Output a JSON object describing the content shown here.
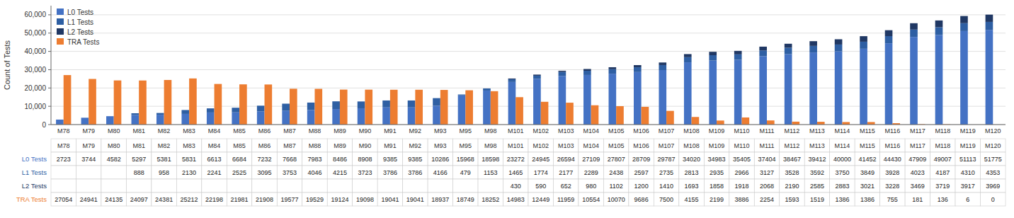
{
  "chart_data": {
    "type": "bar",
    "categories": [
      "M78",
      "M79",
      "M80",
      "M81",
      "M82",
      "M83",
      "M84",
      "M85",
      "M86",
      "M87",
      "M88",
      "M89",
      "M90",
      "M91",
      "M92",
      "M93",
      "M95",
      "M98",
      "M101",
      "M102",
      "M103",
      "M104",
      "M105",
      "M106",
      "M107",
      "M108",
      "M109",
      "M110",
      "M111",
      "M112",
      "M113",
      "M114",
      "M115",
      "M116",
      "M117",
      "M118",
      "M119",
      "M120"
    ],
    "series": [
      {
        "name": "L0 Tests",
        "color": "#4472c4",
        "stacked": true,
        "values": [
          2723,
          3744,
          4582,
          5297,
          5381,
          5831,
          6613,
          6684,
          7232,
          7668,
          7983,
          8486,
          8908,
          9385,
          9385,
          10286,
          15968,
          18598,
          23272,
          24945,
          26594,
          27109,
          27807,
          28709,
          29787,
          34020,
          34983,
          35405,
          37404,
          38467,
          39412,
          40000,
          41452,
          44430,
          47909,
          49007,
          51113,
          51775
        ]
      },
      {
        "name": "L1 Tests",
        "color": "#2e5fa3",
        "stacked": true,
        "values": [
          0,
          0,
          0,
          888,
          958,
          2130,
          2241,
          2525,
          3095,
          3753,
          4046,
          4215,
          3723,
          3786,
          3786,
          4166,
          479,
          1153,
          1465,
          1774,
          2177,
          2289,
          2438,
          2597,
          2735,
          2813,
          2935,
          2966,
          3127,
          3528,
          3592,
          3750,
          3849,
          3928,
          4023,
          4187,
          4310,
          4353
        ]
      },
      {
        "name": "L2 Tests",
        "color": "#203864",
        "stacked": true,
        "values": [
          0,
          0,
          0,
          0,
          0,
          0,
          0,
          0,
          0,
          0,
          0,
          0,
          0,
          0,
          0,
          0,
          0,
          0,
          430,
          590,
          652,
          980,
          1102,
          1200,
          1410,
          1693,
          1858,
          1918,
          2068,
          2190,
          2585,
          2883,
          3021,
          3228,
          3469,
          3719,
          3917,
          3969
        ]
      },
      {
        "name": "TRA Tests",
        "color": "#ed7d31",
        "stacked": false,
        "values": [
          27054,
          24941,
          24135,
          24097,
          24381,
          25212,
          22198,
          21981,
          21908,
          19577,
          19529,
          19124,
          19098,
          19041,
          19041,
          18937,
          18749,
          18252,
          14983,
          12449,
          11959,
          10554,
          10070,
          9686,
          7500,
          4155,
          2199,
          3886,
          2254,
          1593,
          1519,
          1386,
          1386,
          755,
          181,
          136,
          6,
          0
        ]
      }
    ],
    "y_label": "Count of Tests",
    "ylim": [
      0,
      65000
    ],
    "yticks": [
      0,
      {
        "value": 10000,
        "label": "10,000"
      },
      {
        "value": 20000,
        "label": "20,000"
      },
      {
        "value": 30000,
        "label": "30,000"
      },
      {
        "value": 40000,
        "label": "40,000"
      },
      {
        "value": 50000,
        "label": "50,000"
      },
      {
        "value": 60000,
        "label": "60,000"
      }
    ],
    "grid": true,
    "legend": "upper-left"
  }
}
